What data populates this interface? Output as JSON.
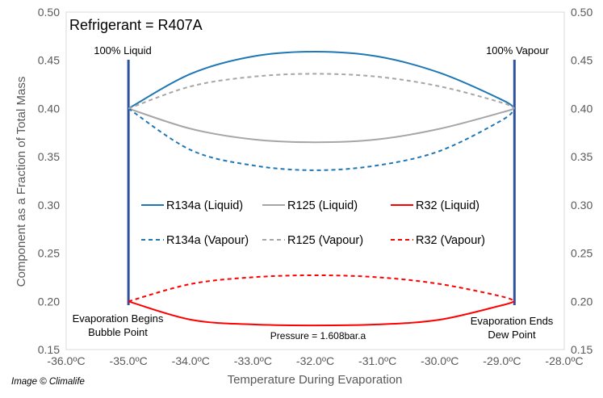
{
  "chart_data": {
    "type": "line",
    "title": "Refrigerant = R407A",
    "xlabel": "Temperature During Evaporation",
    "ylabel": "Component as a Fraction of Total Mass",
    "xlim": [
      -36.0,
      -28.0
    ],
    "ylim": [
      0.15,
      0.5
    ],
    "x_ticks": [
      "-36.0ºC",
      "-35.0ºC",
      "-34.0ºC",
      "-33.0ºC",
      "-32.0ºC",
      "-31.0ºC",
      "-30.0ºC",
      "-29.0ºC",
      "-28.0ºC"
    ],
    "y_ticks": [
      "0.15",
      "0.20",
      "0.25",
      "0.30",
      "0.35",
      "0.40",
      "0.45",
      "0.50"
    ],
    "y_ticks_values": [
      0.15,
      0.2,
      0.25,
      0.3,
      0.35,
      0.4,
      0.45,
      0.5
    ],
    "x_tick_values": [
      -36,
      -35,
      -34,
      -33,
      -32,
      -31,
      -30,
      -29,
      -28
    ],
    "grid": false,
    "legend_position": "center",
    "x_start": -35.0,
    "x_end": -28.8,
    "series": [
      {
        "name": "R134a (Liquid)",
        "color": "#1f77b4",
        "dash": false,
        "x": [
          -35.0,
          -34.0,
          -33.0,
          -32.0,
          -31.0,
          -30.0,
          -29.0,
          -28.8
        ],
        "y": [
          0.4,
          0.436,
          0.454,
          0.459,
          0.454,
          0.437,
          0.409,
          0.4
        ]
      },
      {
        "name": "R125 (Liquid)",
        "color": "#a6a6a6",
        "dash": false,
        "x": [
          -35.0,
          -34.0,
          -33.0,
          -32.0,
          -31.0,
          -30.0,
          -29.0,
          -28.8
        ],
        "y": [
          0.4,
          0.379,
          0.368,
          0.365,
          0.368,
          0.379,
          0.396,
          0.4
        ]
      },
      {
        "name": "R32 (Liquid)",
        "color": "#ff0000",
        "dash": false,
        "x": [
          -35.0,
          -34.0,
          -33.0,
          -32.0,
          -31.0,
          -30.0,
          -29.0,
          -28.8
        ],
        "y": [
          0.2,
          0.181,
          0.176,
          0.175,
          0.176,
          0.181,
          0.196,
          0.2
        ]
      },
      {
        "name": "R134a (Vapour)",
        "color": "#1f77b4",
        "dash": true,
        "x": [
          -35.0,
          -34.0,
          -33.0,
          -32.0,
          -31.0,
          -30.0,
          -29.0,
          -28.8
        ],
        "y": [
          0.4,
          0.357,
          0.341,
          0.336,
          0.341,
          0.356,
          0.388,
          0.4
        ]
      },
      {
        "name": "R125 (Vapour)",
        "color": "#a6a6a6",
        "dash": true,
        "x": [
          -35.0,
          -34.0,
          -33.0,
          -32.0,
          -31.0,
          -30.0,
          -29.0,
          -28.8
        ],
        "y": [
          0.4,
          0.423,
          0.433,
          0.436,
          0.433,
          0.423,
          0.406,
          0.4
        ]
      },
      {
        "name": "R32 (Vapour)",
        "color": "#ff0000",
        "dash": true,
        "x": [
          -35.0,
          -34.0,
          -33.0,
          -32.0,
          -31.0,
          -30.0,
          -29.0,
          -28.8
        ],
        "y": [
          0.2,
          0.218,
          0.225,
          0.227,
          0.225,
          0.218,
          0.205,
          0.2
        ]
      }
    ],
    "annotations": {
      "liquid_label": "100% Liquid",
      "vapour_label": "100% Vapour",
      "begin_line1": "Evaporation Begins",
      "begin_line2": "Bubble Point",
      "end_line1": "Evaporation Ends",
      "end_line2": "Dew Point",
      "pressure": "Pressure = 1.608bar.a"
    },
    "credit": "Image © Climalife"
  }
}
